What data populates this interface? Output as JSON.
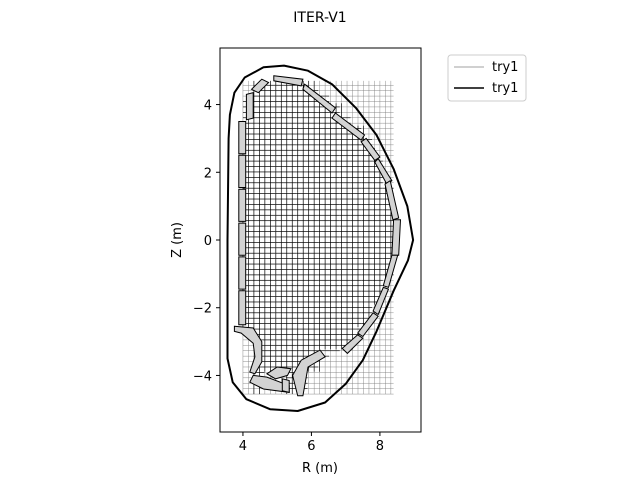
{
  "chart_data": {
    "type": "line",
    "title": "ITER-V1",
    "xlabel": "R (m)",
    "ylabel": "Z (m)",
    "xlim": [
      3.33,
      9.2
    ],
    "ylim": [
      -5.67,
      5.67
    ],
    "xticks": [
      4,
      6,
      8
    ],
    "yticks": [
      -4,
      -2,
      0,
      2,
      4
    ],
    "grid": false,
    "legend_position": "upper-right-outside",
    "legend": [
      {
        "label": "try1",
        "color": "#a0a0a0",
        "line_style": "thin-gray"
      },
      {
        "label": "try1",
        "color": "#000000",
        "line_style": "black"
      }
    ],
    "colors": {
      "vessel": "#000000",
      "mesh": "#000000",
      "mesh_outer": "#808080",
      "tiles": "#d3d3d3"
    },
    "mesh": {
      "r_min": 4.0,
      "r_max": 8.4,
      "z_min": -4.55,
      "z_max": 4.7,
      "dr": 0.16,
      "dz": 0.16
    },
    "vessel_outline": [
      [
        3.62,
        3.7
      ],
      [
        3.75,
        4.35
      ],
      [
        4.05,
        4.8
      ],
      [
        4.6,
        5.1
      ],
      [
        5.2,
        5.15
      ],
      [
        5.9,
        5.0
      ],
      [
        6.6,
        4.6
      ],
      [
        7.3,
        3.9
      ],
      [
        7.9,
        3.1
      ],
      [
        8.4,
        2.1
      ],
      [
        8.8,
        1.0
      ],
      [
        8.97,
        0.0
      ],
      [
        8.82,
        -0.6
      ],
      [
        8.4,
        -1.5
      ],
      [
        7.9,
        -2.7
      ],
      [
        7.5,
        -3.55
      ],
      [
        7.0,
        -4.25
      ],
      [
        6.4,
        -4.8
      ],
      [
        5.6,
        -5.05
      ],
      [
        4.8,
        -5.0
      ],
      [
        4.1,
        -4.7
      ],
      [
        3.7,
        -4.2
      ],
      [
        3.55,
        -3.5
      ],
      [
        3.55,
        0.0
      ],
      [
        3.58,
        3.0
      ]
    ],
    "first_wall": [
      [
        4.0,
        3.55
      ],
      [
        4.1,
        4.1
      ],
      [
        4.5,
        4.6
      ],
      [
        5.0,
        4.75
      ],
      [
        5.7,
        4.7
      ],
      [
        6.3,
        4.3
      ],
      [
        7.0,
        3.7
      ],
      [
        7.6,
        3.0
      ],
      [
        8.1,
        2.1
      ],
      [
        8.4,
        1.1
      ],
      [
        8.45,
        0.2
      ],
      [
        8.35,
        -0.7
      ],
      [
        8.1,
        -1.6
      ],
      [
        7.6,
        -2.5
      ],
      [
        7.0,
        -3.2
      ],
      [
        6.3,
        -3.55
      ],
      [
        5.9,
        -3.9
      ],
      [
        5.7,
        -4.5
      ],
      [
        5.4,
        -4.55
      ],
      [
        5.2,
        -4.0
      ],
      [
        4.9,
        -3.75
      ],
      [
        4.55,
        -3.85
      ],
      [
        4.5,
        -4.3
      ],
      [
        4.15,
        -4.2
      ],
      [
        4.45,
        -3.5
      ],
      [
        4.3,
        -2.95
      ],
      [
        3.95,
        -2.6
      ],
      [
        3.95,
        0.0
      ]
    ],
    "blanket_modules": [
      [
        [
          4.1,
          3.55
        ],
        [
          4.3,
          3.6
        ],
        [
          4.3,
          4.35
        ],
        [
          4.1,
          4.3
        ]
      ],
      [
        [
          4.25,
          4.45
        ],
        [
          4.55,
          4.75
        ],
        [
          4.75,
          4.65
        ],
        [
          4.45,
          4.35
        ]
      ],
      [
        [
          4.9,
          4.85
        ],
        [
          5.75,
          4.75
        ],
        [
          5.7,
          4.55
        ],
        [
          4.9,
          4.7
        ]
      ],
      [
        [
          5.8,
          4.6
        ],
        [
          6.7,
          3.9
        ],
        [
          6.6,
          3.75
        ],
        [
          5.75,
          4.45
        ]
      ],
      [
        [
          6.7,
          3.75
        ],
        [
          7.55,
          3.1
        ],
        [
          7.45,
          2.95
        ],
        [
          6.6,
          3.6
        ]
      ],
      [
        [
          7.6,
          3.0
        ],
        [
          8.0,
          2.45
        ],
        [
          7.85,
          2.35
        ],
        [
          7.45,
          2.9
        ]
      ],
      [
        [
          7.95,
          2.4
        ],
        [
          8.35,
          1.75
        ],
        [
          8.2,
          1.65
        ],
        [
          7.85,
          2.3
        ]
      ],
      [
        [
          8.3,
          1.75
        ],
        [
          8.55,
          0.65
        ],
        [
          8.38,
          0.6
        ],
        [
          8.15,
          1.65
        ]
      ],
      [
        [
          8.4,
          0.6
        ],
        [
          8.6,
          0.6
        ],
        [
          8.55,
          -0.45
        ],
        [
          8.35,
          -0.45
        ]
      ],
      [
        [
          8.35,
          -0.45
        ],
        [
          8.52,
          -0.45
        ],
        [
          8.25,
          -1.4
        ],
        [
          8.1,
          -1.35
        ]
      ],
      [
        [
          8.1,
          -1.4
        ],
        [
          8.25,
          -1.45
        ],
        [
          7.95,
          -2.2
        ],
        [
          7.8,
          -2.1
        ]
      ],
      [
        [
          7.8,
          -2.15
        ],
        [
          7.95,
          -2.25
        ],
        [
          7.5,
          -2.85
        ],
        [
          7.35,
          -2.75
        ]
      ],
      [
        [
          7.35,
          -2.8
        ],
        [
          7.5,
          -2.9
        ],
        [
          7.05,
          -3.35
        ],
        [
          6.9,
          -3.2
        ]
      ],
      [
        [
          3.88,
          3.5
        ],
        [
          4.08,
          3.5
        ],
        [
          4.08,
          2.55
        ],
        [
          3.88,
          2.55
        ]
      ],
      [
        [
          3.88,
          2.5
        ],
        [
          4.08,
          2.5
        ],
        [
          4.08,
          1.55
        ],
        [
          3.88,
          1.55
        ]
      ],
      [
        [
          3.88,
          1.5
        ],
        [
          4.08,
          1.5
        ],
        [
          4.08,
          0.55
        ],
        [
          3.88,
          0.55
        ]
      ],
      [
        [
          3.88,
          0.5
        ],
        [
          4.08,
          0.5
        ],
        [
          4.08,
          -0.45
        ],
        [
          3.88,
          -0.45
        ]
      ],
      [
        [
          3.88,
          -0.5
        ],
        [
          4.08,
          -0.5
        ],
        [
          4.08,
          -1.45
        ],
        [
          3.88,
          -1.45
        ]
      ],
      [
        [
          3.88,
          -1.5
        ],
        [
          4.08,
          -1.5
        ],
        [
          4.08,
          -2.5
        ],
        [
          3.88,
          -2.5
        ]
      ]
    ],
    "divertor": [
      [
        [
          3.75,
          -2.55
        ],
        [
          4.3,
          -2.6
        ],
        [
          4.55,
          -3.0
        ],
        [
          4.55,
          -3.6
        ],
        [
          4.35,
          -3.95
        ],
        [
          4.2,
          -3.9
        ],
        [
          4.35,
          -3.45
        ],
        [
          4.3,
          -3.05
        ],
        [
          3.95,
          -2.75
        ],
        [
          3.75,
          -2.7
        ]
      ],
      [
        [
          5.6,
          -4.6
        ],
        [
          5.45,
          -4.0
        ],
        [
          5.7,
          -3.55
        ],
        [
          6.25,
          -3.25
        ],
        [
          6.4,
          -3.45
        ],
        [
          5.9,
          -3.75
        ],
        [
          5.75,
          -4.6
        ]
      ],
      [
        [
          4.2,
          -4.2
        ],
        [
          4.6,
          -4.4
        ],
        [
          5.35,
          -4.5
        ],
        [
          5.35,
          -4.3
        ],
        [
          4.7,
          -4.05
        ],
        [
          4.3,
          -4.0
        ]
      ],
      [
        [
          4.7,
          -3.95
        ],
        [
          5.0,
          -3.75
        ],
        [
          5.4,
          -3.8
        ],
        [
          5.3,
          -4.0
        ],
        [
          4.95,
          -4.1
        ]
      ],
      [
        [
          5.15,
          -4.1
        ],
        [
          5.35,
          -4.15
        ],
        [
          5.35,
          -4.5
        ],
        [
          5.15,
          -4.45
        ]
      ]
    ]
  }
}
